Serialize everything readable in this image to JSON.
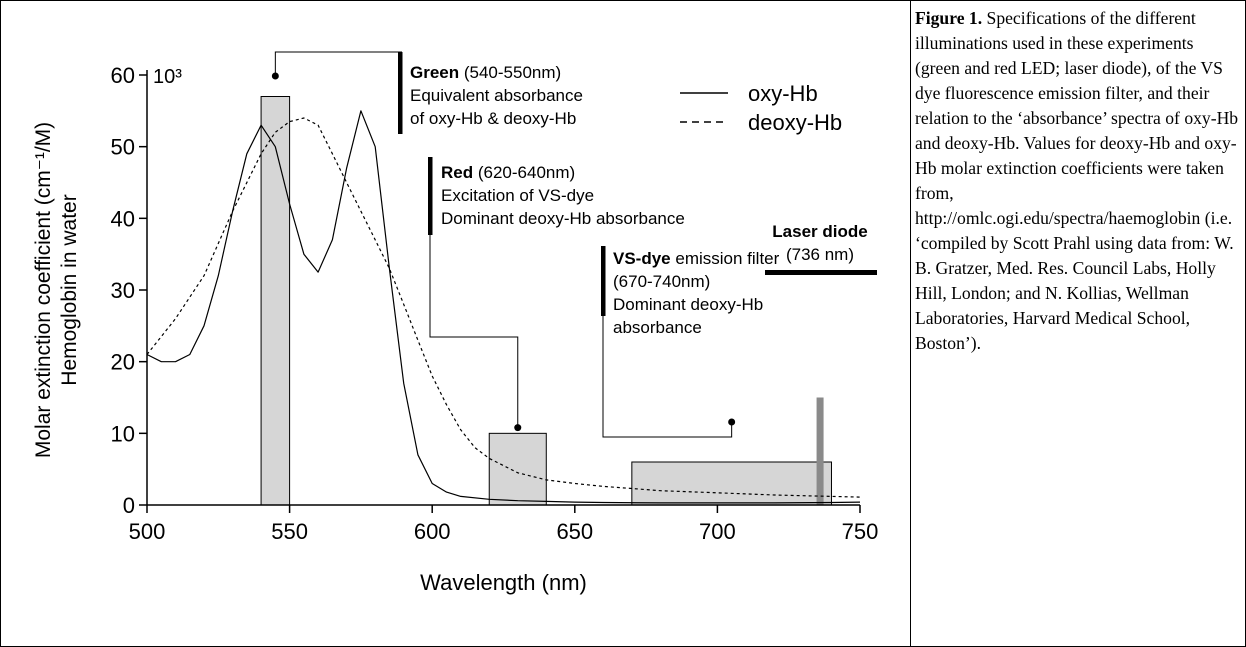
{
  "chart_data": {
    "type": "line",
    "xlabel": "Wavelength (nm)",
    "ylabel": [
      "Molar extinction coefficient (cm⁻¹/M)",
      "Hemoglobin in water"
    ],
    "y_multiplier_label": "10³",
    "xlim": [
      500,
      750
    ],
    "ylim": [
      0,
      60
    ],
    "x_ticks": [
      500,
      550,
      600,
      650,
      700,
      750
    ],
    "y_ticks": [
      0,
      10,
      20,
      30,
      40,
      50,
      60
    ],
    "grid": false,
    "legend_position": "top-right",
    "series": [
      {
        "name": "oxy-Hb",
        "style": "solid",
        "x": [
          500,
          505,
          510,
          515,
          520,
          525,
          530,
          535,
          540,
          545,
          550,
          555,
          560,
          565,
          570,
          575,
          580,
          585,
          590,
          595,
          600,
          605,
          610,
          620,
          630,
          640,
          650,
          660,
          680,
          700,
          720,
          740,
          750
        ],
        "y": [
          21,
          20,
          20,
          21,
          25,
          32,
          41,
          49,
          53,
          50,
          42,
          35,
          32.5,
          37,
          47,
          55,
          50,
          33,
          17,
          7,
          3,
          1.8,
          1.2,
          0.8,
          0.6,
          0.5,
          0.4,
          0.35,
          0.3,
          0.3,
          0.3,
          0.35,
          0.4
        ]
      },
      {
        "name": "deoxy-Hb",
        "style": "dashed",
        "x": [
          500,
          510,
          520,
          530,
          540,
          545,
          550,
          555,
          560,
          565,
          570,
          575,
          580,
          585,
          590,
          595,
          600,
          605,
          610,
          615,
          620,
          630,
          640,
          650,
          660,
          670,
          680,
          700,
          720,
          740,
          750
        ],
        "y": [
          21,
          26,
          32,
          41,
          49,
          52,
          53.5,
          54,
          53,
          49,
          45,
          41,
          37,
          33,
          28,
          23,
          18,
          14,
          10.5,
          8,
          6.5,
          4.5,
          3.5,
          3,
          2.6,
          2.3,
          2,
          1.7,
          1.4,
          1.2,
          1.1
        ]
      }
    ],
    "bands": [
      {
        "name": "Green",
        "from": 540,
        "to": 550,
        "top": 57,
        "color": "#d6d6d6"
      },
      {
        "name": "Red",
        "from": 620,
        "to": 640,
        "top": 10,
        "color": "#d6d6d6"
      },
      {
        "name": "VS-dye",
        "from": 670,
        "to": 740,
        "top": 6,
        "color": "#d6d6d6"
      }
    ],
    "laser": {
      "x": 736,
      "top": 15,
      "color": "#8a8a8a"
    },
    "annotations": {
      "green": {
        "title": "Green",
        "range": "(540-550nm)",
        "lines": [
          "Equivalent absorbance",
          "of oxy-Hb & deoxy-Hb"
        ],
        "anchor_x": 545
      },
      "red": {
        "title": "Red",
        "range": "(620-640nm)",
        "lines": [
          "Excitation of VS-dye",
          "Dominant deoxy-Hb absorbance"
        ],
        "anchor_x": 630
      },
      "vsdye": {
        "title": "VS-dye",
        "title_suffix": "emission filter",
        "lines": [
          "(670-740nm)",
          "Dominant deoxy-Hb",
          "absorbance"
        ],
        "anchor_x": 705
      },
      "laser": {
        "title": "Laser diode",
        "value": "(736 nm)"
      }
    }
  },
  "caption": {
    "label": "Figure 1.",
    "text": "Specifications of the different illuminations used in these experiments (green and red LED; laser diode), of the VS dye fluorescence emission filter, and their relation to the ‘absorbance’ spectra of oxy-Hb and deoxy-Hb. Values for deoxy-Hb and oxy-Hb molar extinction coefficients were taken from, http://omlc.ogi.edu/spectra/haemoglobin (i.e. ‘compiled by Scott Prahl using data from: W. B. Gratzer, Med. Res. Council Labs, Holly Hill, London; and N. Kollias, Wellman Laboratories, Harvard Medical School, Boston’)."
  }
}
